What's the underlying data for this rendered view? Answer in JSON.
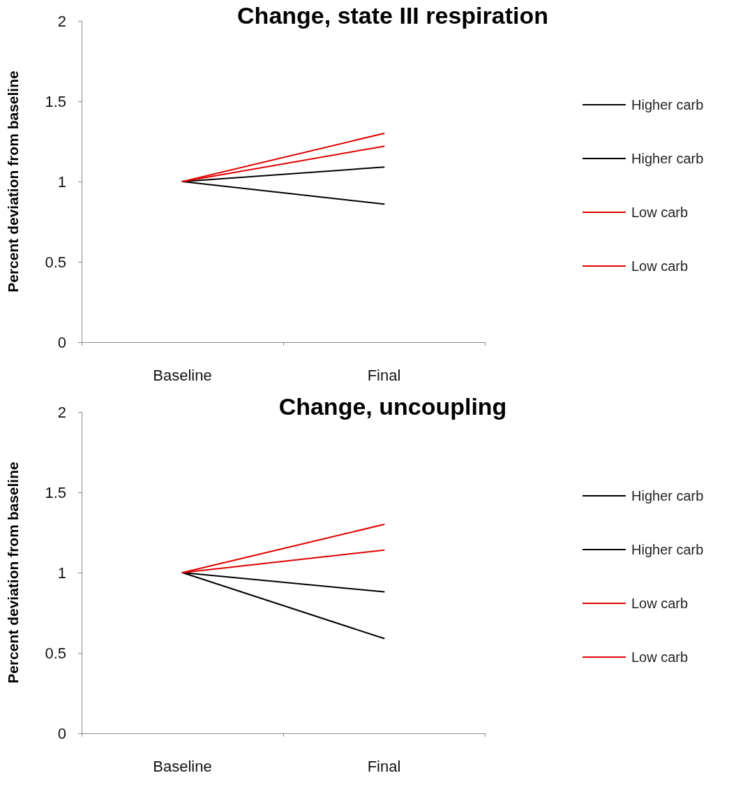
{
  "chart_data": [
    {
      "type": "line",
      "title": "Change, state III respiration",
      "ylabel": "Percent deviation from baseline",
      "categories": [
        "Baseline",
        "Final"
      ],
      "series": [
        {
          "name": "Higher carb",
          "color": "#000000",
          "values": [
            1,
            1.09
          ]
        },
        {
          "name": "Higher carb",
          "color": "#000000",
          "values": [
            1,
            0.86
          ]
        },
        {
          "name": "Low carb",
          "color": "#e00000",
          "values": [
            1,
            1.3
          ]
        },
        {
          "name": "Low carb",
          "color": "#e00000",
          "values": [
            1,
            1.22
          ]
        }
      ],
      "ylim": [
        0,
        2
      ],
      "yticks": [
        0,
        0.5,
        1,
        1.5,
        2
      ],
      "grid": false,
      "legend": "right",
      "marker": "none",
      "line_style": "solid"
    },
    {
      "type": "line",
      "title": "Change, uncoupling",
      "ylabel": "Percent deviation from baseline",
      "categories": [
        "Baseline",
        "Final"
      ],
      "series": [
        {
          "name": "Higher carb",
          "color": "#000000",
          "values": [
            1,
            0.88
          ]
        },
        {
          "name": "Higher carb",
          "color": "#000000",
          "values": [
            1,
            0.59
          ]
        },
        {
          "name": "Low carb",
          "color": "#e00000",
          "values": [
            1,
            1.3
          ]
        },
        {
          "name": "Low carb",
          "color": "#e00000",
          "values": [
            1,
            1.14
          ]
        }
      ],
      "ylim": [
        0,
        2
      ],
      "yticks": [
        0,
        0.5,
        1,
        1.5,
        2
      ],
      "grid": false,
      "legend": "right",
      "marker": "none",
      "line_style": "solid"
    }
  ]
}
